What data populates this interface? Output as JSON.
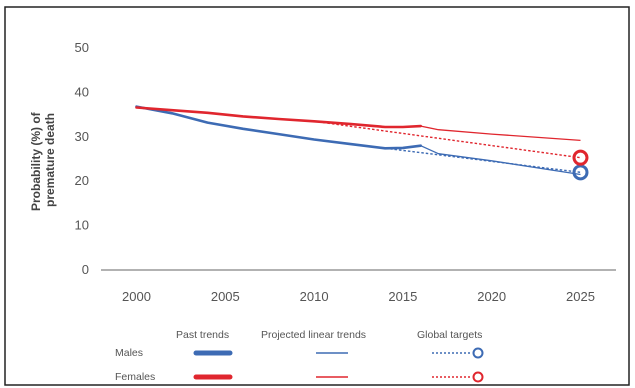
{
  "chart_data": {
    "type": "line",
    "title": "",
    "ylabel_lines": [
      "Probability (%) of",
      "premature death"
    ],
    "xlabel": "",
    "xlim": [
      1998,
      2027
    ],
    "ylim": [
      0,
      50
    ],
    "x_ticks": [
      "2000",
      "2005",
      "2010",
      "2015",
      "2020",
      "2025"
    ],
    "y_ticks": [
      "0",
      "10",
      "20",
      "30",
      "40",
      "50"
    ],
    "grid": false,
    "legend": {
      "placement": "bottom",
      "column_headers": [
        "Past trends",
        "Projected linear trends",
        "Global targets"
      ],
      "row_labels": [
        "Males",
        "Females"
      ]
    },
    "colors": {
      "Males": "#3d6bb4",
      "Females": "#e0262e",
      "axis": "#666666",
      "text": "#555555"
    },
    "series": [
      {
        "name": "Males",
        "kind": "Past trends",
        "color": "#3d6bb4",
        "points": [
          [
            2000,
            36.8
          ],
          [
            2002,
            35.3
          ],
          [
            2004,
            33.2
          ],
          [
            2006,
            31.8
          ],
          [
            2008,
            30.6
          ],
          [
            2010,
            29.4
          ],
          [
            2012,
            28.4
          ],
          [
            2014,
            27.4
          ],
          [
            2015,
            27.5
          ],
          [
            2016,
            28.0
          ]
        ]
      },
      {
        "name": "Females",
        "kind": "Past trends",
        "color": "#e0262e",
        "points": [
          [
            2000,
            36.6
          ],
          [
            2002,
            36.0
          ],
          [
            2004,
            35.4
          ],
          [
            2006,
            34.6
          ],
          [
            2008,
            34.0
          ],
          [
            2010,
            33.5
          ],
          [
            2012,
            32.9
          ],
          [
            2014,
            32.2
          ],
          [
            2015,
            32.2
          ],
          [
            2016,
            32.4
          ]
        ]
      },
      {
        "name": "Males",
        "kind": "Projected linear trends",
        "color": "#3d6bb4",
        "points": [
          [
            2016,
            28.0
          ],
          [
            2017,
            26.2
          ],
          [
            2020,
            24.6
          ],
          [
            2025,
            21.5
          ]
        ]
      },
      {
        "name": "Females",
        "kind": "Projected linear trends",
        "color": "#e0262e",
        "points": [
          [
            2016,
            32.4
          ],
          [
            2017,
            31.6
          ],
          [
            2020,
            30.6
          ],
          [
            2025,
            29.2
          ]
        ]
      },
      {
        "name": "Males",
        "kind": "Global targets",
        "color": "#3d6bb4",
        "points": [
          [
            2010,
            29.4
          ],
          [
            2025,
            22.0
          ]
        ],
        "target": [
          2025,
          22.0
        ]
      },
      {
        "name": "Females",
        "kind": "Global targets",
        "color": "#e0262e",
        "points": [
          [
            2010,
            33.5
          ],
          [
            2025,
            25.3
          ]
        ],
        "target": [
          2025,
          25.3
        ]
      }
    ]
  }
}
